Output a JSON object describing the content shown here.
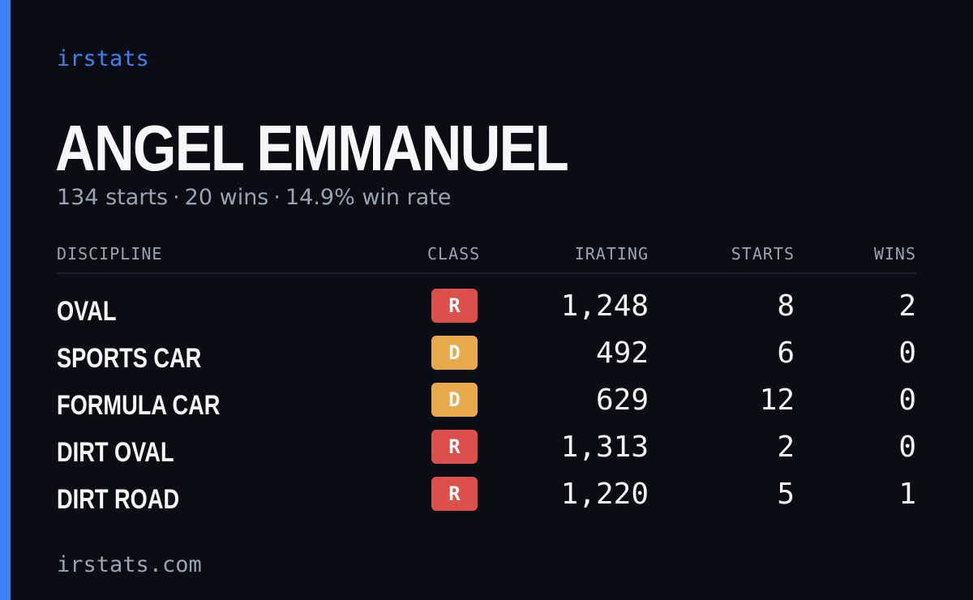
{
  "brand": "irstats",
  "driver": {
    "name": "ANGEL EMMANUEL"
  },
  "summary": {
    "starts": "134 starts",
    "wins": "20 wins",
    "win_rate": "14.9% win rate",
    "separator": "·"
  },
  "table": {
    "headers": {
      "discipline": "DISCIPLINE",
      "class": "CLASS",
      "irating": "IRATING",
      "starts": "STARTS",
      "wins": "WINS"
    },
    "rows": [
      {
        "discipline": "OVAL",
        "class": "R",
        "class_color": "#dc4f4a",
        "irating": "1,248",
        "starts": "8",
        "wins": "2"
      },
      {
        "discipline": "SPORTS CAR",
        "class": "D",
        "class_color": "#e8a94a",
        "irating": "492",
        "starts": "6",
        "wins": "0"
      },
      {
        "discipline": "FORMULA CAR",
        "class": "D",
        "class_color": "#e8a94a",
        "irating": "629",
        "starts": "12",
        "wins": "0"
      },
      {
        "discipline": "DIRT OVAL",
        "class": "R",
        "class_color": "#dc4f4a",
        "irating": "1,313",
        "starts": "2",
        "wins": "0"
      },
      {
        "discipline": "DIRT ROAD",
        "class": "R",
        "class_color": "#dc4f4a",
        "irating": "1,220",
        "starts": "5",
        "wins": "1"
      }
    ]
  },
  "footer": {
    "url": "irstats.com"
  },
  "colors": {
    "background": "#0a0d14",
    "accent": "#3b82f6",
    "text": "#f5f7fb",
    "muted": "#9aa3b2"
  }
}
